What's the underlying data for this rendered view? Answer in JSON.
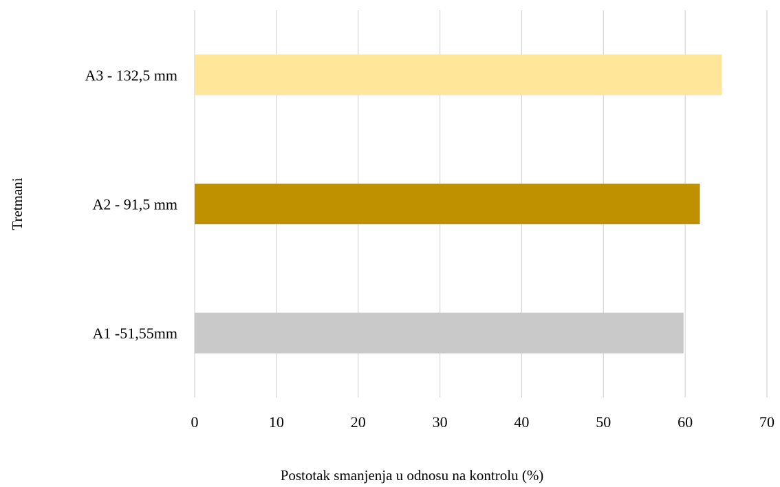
{
  "chart_data": {
    "type": "bar",
    "orientation": "horizontal",
    "categories": [
      "A1 -51,55mm",
      "A2 - 91,5 mm",
      "A3 - 132,5 mm"
    ],
    "values": [
      59.8,
      61.8,
      64.5
    ],
    "colors": [
      "#c9c9c9",
      "#bf9000",
      "#ffe699"
    ],
    "xlabel": "Postotak smanjenja u odnosu na kontrolu (%)",
    "ylabel": "Tretmani",
    "xlim": [
      0,
      70
    ],
    "xticks": [
      "0",
      "10",
      "20",
      "30",
      "40",
      "50",
      "60",
      "70"
    ],
    "grid": "vertical",
    "gridColor": "#d9d9d9",
    "legend": "none"
  }
}
